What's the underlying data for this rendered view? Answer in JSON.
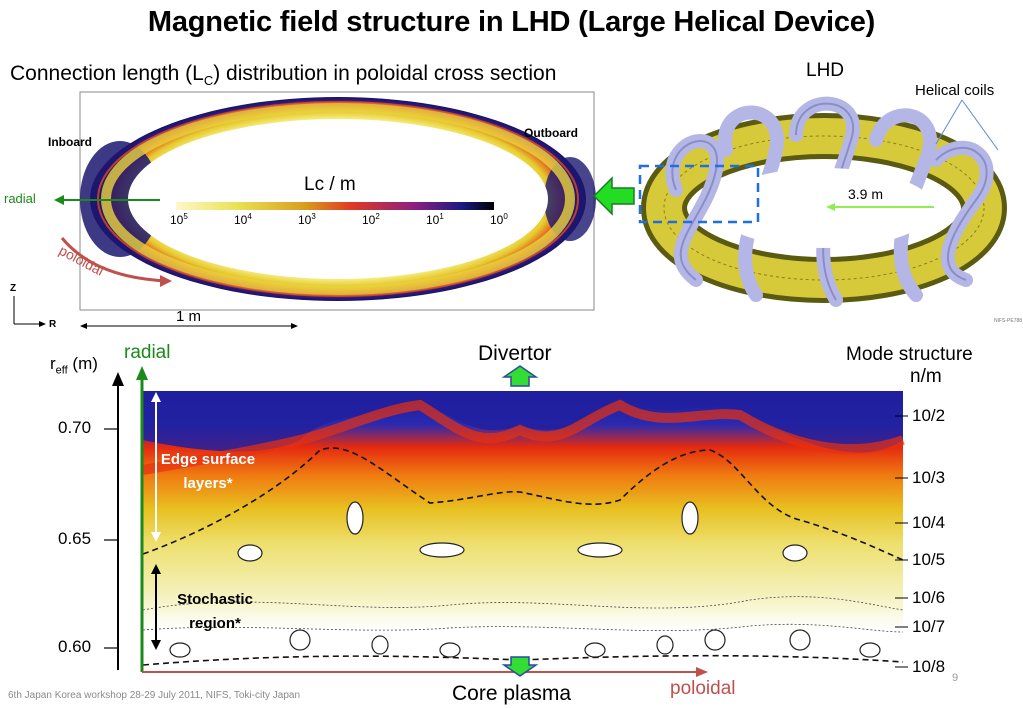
{
  "title": "Magnetic field structure in LHD (Large Helical Device)",
  "subtitle": {
    "prefix": "Connection length (L",
    "sub": "C",
    "suffix": ") distribution in poloidal cross section"
  },
  "cross_section": {
    "inboard": "Inboard",
    "outboard": "Outboard",
    "radial": "radial",
    "poloidal": "poloidal",
    "scale": "1 m",
    "axis_z": "Z",
    "axis_r": "R",
    "colorbar_title": "Lc / m",
    "colorbar_ticks": [
      {
        "base": "10",
        "exp": "5"
      },
      {
        "base": "10",
        "exp": "4"
      },
      {
        "base": "10",
        "exp": "3"
      },
      {
        "base": "10",
        "exp": "2"
      },
      {
        "base": "10",
        "exp": "1"
      },
      {
        "base": "10",
        "exp": "0"
      }
    ]
  },
  "lhd": {
    "label": "LHD",
    "coils": "Helical coils",
    "dimension": "3.9 m",
    "credit": "NIFS-PE788"
  },
  "poincare": {
    "yaxis_label_main": "r",
    "yaxis_label_sub": "eff",
    "yaxis_label_unit": " (m)",
    "yticks": [
      "0.70",
      "0.65",
      "0.60"
    ],
    "radial": "radial",
    "poloidal": "poloidal",
    "divertor": "Divertor",
    "core": "Core plasma",
    "edge_layers": "Edge surface layers*",
    "stochastic": "Stochastic region*",
    "mode_title": "Mode structure",
    "mode_subtitle": "n/m",
    "modes": [
      "10/2",
      "10/3",
      "10/4",
      "10/5",
      "10/6",
      "10/7",
      "10/8"
    ]
  },
  "footer": "6th Japan Korea workshop 28-29 July 2011, NIFS, Toki-city  Japan",
  "page": "9",
  "colors": {
    "green_arrow": "#22dd22",
    "radial_green": "#1a8a1a",
    "poloidal_red": "#c0504d",
    "blue_box": "#1f6fe0",
    "coil_lavender": "#b4b7e6",
    "plasma_yellow": "#d6c93a"
  }
}
